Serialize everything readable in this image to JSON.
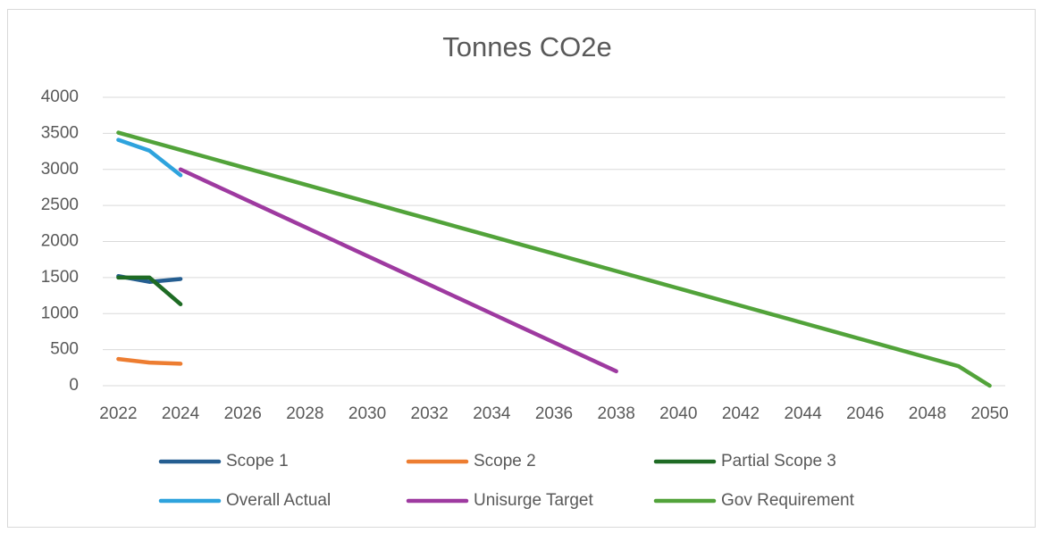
{
  "chart_data": {
    "type": "line",
    "title": "Tonnes CO2e",
    "x": [
      2022,
      2023,
      2024,
      2025,
      2026,
      2027,
      2028,
      2029,
      2030,
      2031,
      2032,
      2033,
      2034,
      2035,
      2036,
      2037,
      2038,
      2039,
      2040,
      2041,
      2042,
      2043,
      2044,
      2045,
      2046,
      2047,
      2048,
      2049,
      2050
    ],
    "xlim": [
      2021.5,
      2050.5
    ],
    "xticks": [
      2022,
      2024,
      2026,
      2028,
      2030,
      2032,
      2034,
      2036,
      2038,
      2040,
      2042,
      2044,
      2046,
      2048,
      2050
    ],
    "ylim": [
      0,
      4000
    ],
    "yticks": [
      0,
      500,
      1000,
      1500,
      2000,
      2500,
      3000,
      3500,
      4000
    ],
    "grid": true,
    "legend": "bottom",
    "series": [
      {
        "name": "Scope 1",
        "color": "#255e91",
        "values": [
          1520,
          1440,
          1480,
          null,
          null,
          null,
          null,
          null,
          null,
          null,
          null,
          null,
          null,
          null,
          null,
          null,
          null,
          null,
          null,
          null,
          null,
          null,
          null,
          null,
          null,
          null,
          null,
          null,
          null
        ]
      },
      {
        "name": "Scope 2",
        "color": "#ed7d31",
        "values": [
          370,
          320,
          305,
          null,
          null,
          null,
          null,
          null,
          null,
          null,
          null,
          null,
          null,
          null,
          null,
          null,
          null,
          null,
          null,
          null,
          null,
          null,
          null,
          null,
          null,
          null,
          null,
          null,
          null
        ]
      },
      {
        "name": "Partial Scope 3",
        "color": "#1e6b24",
        "values": [
          1500,
          1500,
          1130,
          null,
          null,
          null,
          null,
          null,
          null,
          null,
          null,
          null,
          null,
          null,
          null,
          null,
          null,
          null,
          null,
          null,
          null,
          null,
          null,
          null,
          null,
          null,
          null,
          null,
          null
        ]
      },
      {
        "name": "Overall Actual",
        "color": "#2ea3dd",
        "values": [
          3410,
          3260,
          2920,
          null,
          null,
          null,
          null,
          null,
          null,
          null,
          null,
          null,
          null,
          null,
          null,
          null,
          null,
          null,
          null,
          null,
          null,
          null,
          null,
          null,
          null,
          null,
          null,
          null,
          null
        ]
      },
      {
        "name": "Unisurge Target",
        "color": "#9e3aa0",
        "values": [
          null,
          null,
          3000,
          2800,
          2600,
          2400,
          2200,
          2000,
          1800,
          1600,
          1400,
          1200,
          1000,
          800,
          600,
          400,
          200,
          null,
          null,
          null,
          null,
          null,
          null,
          null,
          null,
          null,
          null,
          null,
          null
        ]
      },
      {
        "name": "Gov Requirement",
        "color": "#52a33a",
        "values": [
          3510,
          3390,
          3270,
          3150,
          3030,
          2910,
          2790,
          2670,
          2550,
          2430,
          2310,
          2190,
          2070,
          1950,
          1830,
          1710,
          1590,
          1470,
          1350,
          1230,
          1110,
          990,
          870,
          750,
          630,
          510,
          390,
          270,
          0
        ]
      }
    ]
  }
}
